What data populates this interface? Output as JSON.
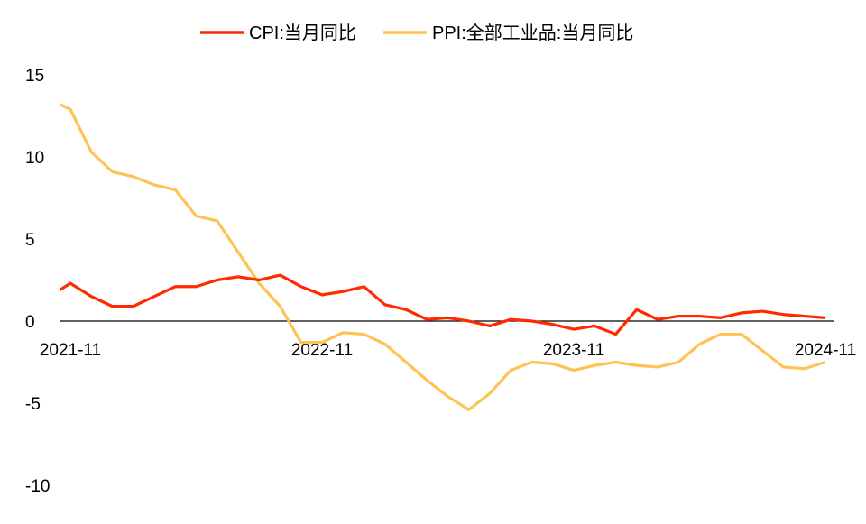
{
  "chart_data": {
    "type": "line",
    "title": "",
    "xlabel": "",
    "ylabel": "",
    "x": [
      "2021-10",
      "2021-11",
      "2021-12",
      "2022-01",
      "2022-02",
      "2022-03",
      "2022-04",
      "2022-05",
      "2022-06",
      "2022-07",
      "2022-08",
      "2022-09",
      "2022-10",
      "2022-11",
      "2022-12",
      "2023-01",
      "2023-02",
      "2023-03",
      "2023-04",
      "2023-05",
      "2023-06",
      "2023-07",
      "2023-08",
      "2023-09",
      "2023-10",
      "2023-11",
      "2023-12",
      "2024-01",
      "2024-02",
      "2024-03",
      "2024-04",
      "2024-05",
      "2024-06",
      "2024-07",
      "2024-08",
      "2024-09",
      "2024-10",
      "2024-11"
    ],
    "x_tick_labels": [
      "2021-11",
      "2022-11",
      "2023-11",
      "2024-11"
    ],
    "ylim": [
      -10,
      15
    ],
    "y_ticks": [
      15,
      10,
      5,
      0,
      -5,
      -10
    ],
    "grid": false,
    "legend_position": "top",
    "series": [
      {
        "name": "CPI:当月同比",
        "color": "#FF2A00",
        "values": [
          1.5,
          2.3,
          1.5,
          0.9,
          0.9,
          1.5,
          2.1,
          2.1,
          2.5,
          2.7,
          2.5,
          2.8,
          2.1,
          1.6,
          1.8,
          2.1,
          1.0,
          0.7,
          0.1,
          0.2,
          0.0,
          -0.3,
          0.1,
          0.0,
          -0.2,
          -0.5,
          -0.3,
          -0.8,
          0.7,
          0.1,
          0.3,
          0.3,
          0.2,
          0.5,
          0.6,
          0.4,
          0.3,
          0.2
        ]
      },
      {
        "name": "PPI:全部工业品:当月同比",
        "color": "#FFC255",
        "values": [
          13.5,
          12.9,
          10.3,
          9.1,
          8.8,
          8.3,
          8.0,
          6.4,
          6.1,
          4.2,
          2.3,
          0.9,
          -1.3,
          -1.3,
          -0.7,
          -0.8,
          -1.4,
          -2.5,
          -3.6,
          -4.6,
          -5.4,
          -4.4,
          -3.0,
          -2.5,
          -2.6,
          -3.0,
          -2.7,
          -2.5,
          -2.7,
          -2.8,
          -2.5,
          -1.4,
          -0.8,
          -0.8,
          -1.8,
          -2.8,
          -2.9,
          -2.5
        ]
      }
    ]
  }
}
